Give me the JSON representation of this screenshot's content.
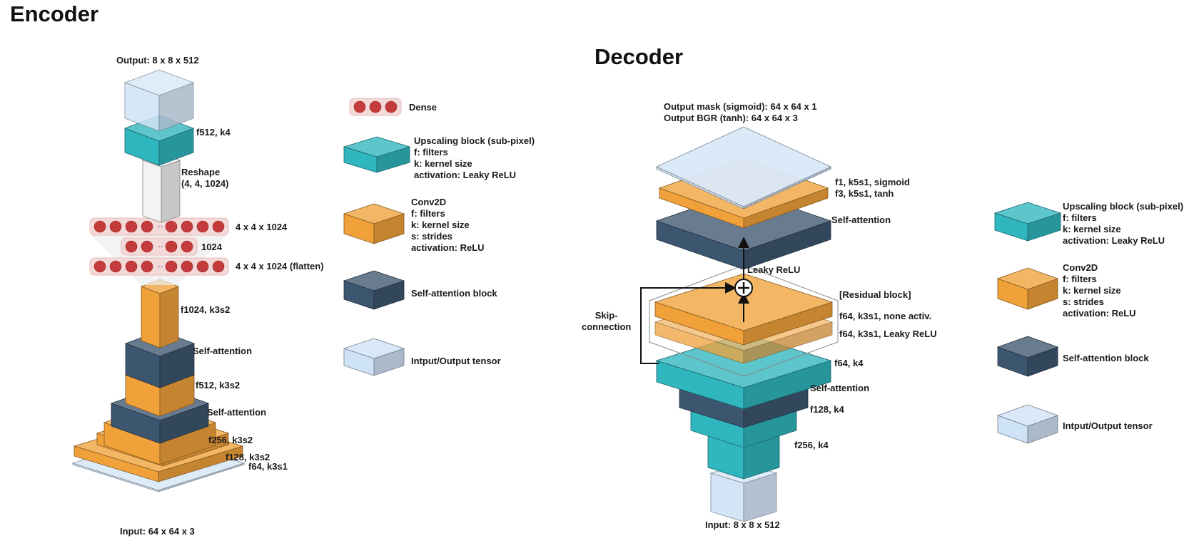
{
  "colors": {
    "orange": "#f0a13a",
    "teal": "#2fb6be",
    "navy": "#3d5670",
    "light_blue": "#cfe3f7",
    "dense_red": "#c43b3b",
    "dense_bg": "#f4d9d9",
    "reshape_gray": "#f3f3f3"
  },
  "encoder": {
    "title": "Encoder",
    "output_label": "Output: 8 x 8 x 512",
    "input_label": "Input: 64 x 64 x 3",
    "upscale_label": "f512, k4",
    "reshape_label": "Reshape\n(4, 4, 1024)",
    "dense_labels": [
      "4 x 4 x 1024",
      "1024",
      "4 x 4 x 1024 (flatten)"
    ],
    "conv_labels": [
      "f1024, k3s2",
      "f512, k3s2",
      "f256, k3s2",
      "f128, k3s2",
      "f64, k3s1"
    ],
    "attention_labels": [
      "Self-attention",
      "Self-attention"
    ]
  },
  "legend_left": {
    "dense": "Dense",
    "upscaling": "Upscaling block (sub-pixel)\nf: filters\nk: kernel size\nactivation: Leaky ReLU",
    "conv": "Conv2D\nf: filters\nk: kernel size\ns: strides\nactivation: ReLU",
    "attention": "Self-attention block",
    "tensor": "Intput/Output tensor"
  },
  "decoder": {
    "title": "Decoder",
    "output_label": "Output mask (sigmoid): 64 x 64 x 1\nOutput BGR (tanh): 64 x 64 x 3",
    "input_label": "Input: 8 x 8 x 512",
    "final_conv_label": "f1, k5s1, sigmoid\nf3, k5s1, tanh",
    "attention_top_label": "Self-attention",
    "leaky_label": "Leaky ReLU",
    "residual_label": "[Residual block]",
    "res_conv1_label": "f64, k3s1, none activ.",
    "res_conv2_label": "f64, k3s1, Leaky ReLU",
    "skip_label": "Skip-\nconnection",
    "up64_label": "f64, k4",
    "attention_mid_label": "Self-attention",
    "up128_label": "f128, k4",
    "up256_label": "f256, k4"
  },
  "legend_right": {
    "upscaling": "Upscaling block (sub-pixel)\nf: filters\nk: kernel size\nactivation: Leaky ReLU",
    "conv": "Conv2D\nf: filters\nk: kernel size\ns: strides\nactivation: ReLU",
    "attention": "Self-attention block",
    "tensor": "Intput/Output tensor"
  }
}
